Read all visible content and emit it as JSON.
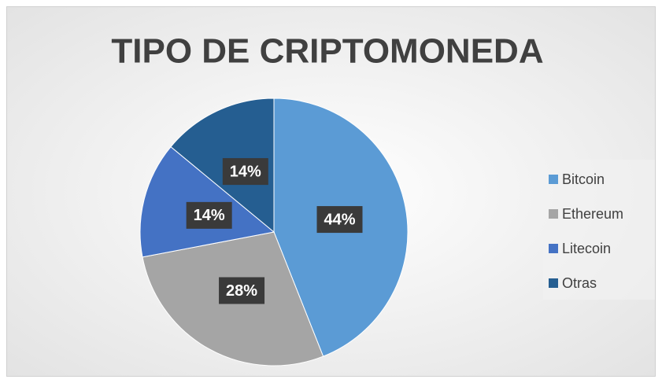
{
  "chart_data": {
    "type": "pie",
    "title": "TIPO DE CRIPTOMONEDA",
    "categories": [
      "Bitcoin",
      "Ethereum",
      "Litecoin",
      "Otras"
    ],
    "values": [
      44,
      28,
      14,
      14
    ],
    "value_labels": [
      "44%",
      "28%",
      "14%",
      "14%"
    ],
    "colors": [
      "#5b9bd5",
      "#a5a5a5",
      "#4472c4",
      "#255e91"
    ],
    "legend": "right"
  }
}
